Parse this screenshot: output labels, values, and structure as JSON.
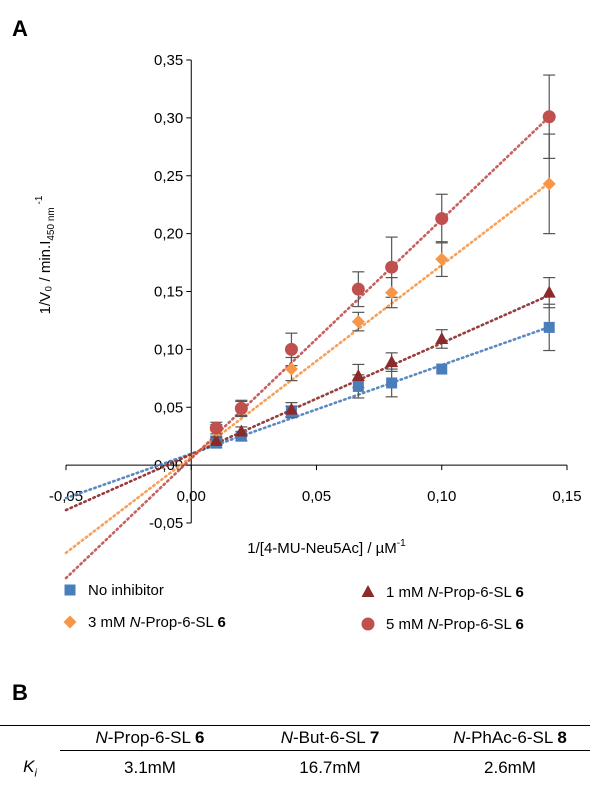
{
  "panels": {
    "a_label": "A",
    "b_label": "B"
  },
  "chart_data": {
    "type": "scatter",
    "xlabel": "1/[4-MU-Neu5Ac] / µM",
    "xlabel_sup": "-1",
    "ylabel": "1/V₀ / min.I",
    "ylabel_sub": "450 nm",
    "ylabel_sup": "-1",
    "xlim": [
      -0.05,
      0.15
    ],
    "ylim": [
      -0.05,
      0.35
    ],
    "x_ticks": [
      -0.05,
      0.0,
      0.05,
      0.1,
      0.15
    ],
    "x_tick_labels": [
      "-0,05",
      "0,00",
      "0,05",
      "0,10",
      "0,15"
    ],
    "y_ticks": [
      -0.05,
      0.0,
      0.05,
      0.1,
      0.15,
      0.2,
      0.25,
      0.3,
      0.35
    ],
    "y_tick_labels": [
      "-0,05",
      "0,00",
      "0,05",
      "0,10",
      "0,15",
      "0,20",
      "0,25",
      "0,30",
      "0,35"
    ],
    "grid": false,
    "legend_position": "bottom",
    "x": [
      0.01,
      0.02,
      0.04,
      0.0667,
      0.08,
      0.1,
      0.1429
    ],
    "series": [
      {
        "name": "No inhibitor",
        "marker": "square",
        "color": "#4a7ebb",
        "line_color": "#4a7ebb",
        "values": [
          0.019,
          0.025,
          0.046,
          0.068,
          0.071,
          0.083,
          0.119
        ],
        "errors": [
          0.004,
          0.004,
          0.005,
          0.01,
          0.012,
          0.0,
          0.02
        ],
        "fit": {
          "slope": 0.766,
          "intercept": 0.0098
        }
      },
      {
        "name": "1 mM N-Prop-6-SL 6",
        "marker": "triangle",
        "color": "#8b2a2a",
        "line_color": "#8b2a2a",
        "values": [
          0.021,
          0.029,
          0.048,
          0.077,
          0.089,
          0.109,
          0.149
        ],
        "errors": [
          0.003,
          0.004,
          0.006,
          0.01,
          0.008,
          0.008,
          0.013
        ],
        "fit": {
          "slope": 0.962,
          "intercept": 0.0093
        }
      },
      {
        "name": "3 mM N-Prop-6-SL 6",
        "marker": "diamond",
        "color": "#f79646",
        "line_color": "#f79646",
        "values": [
          0.03,
          0.049,
          0.083,
          0.124,
          0.149,
          0.178,
          0.243
        ],
        "errors": [
          0.005,
          0.006,
          0.01,
          0.008,
          0.013,
          0.015,
          0.043
        ],
        "fit": {
          "slope": 1.657,
          "intercept": 0.0071
        }
      },
      {
        "name": "5 mM N-Prop-6-SL 6",
        "marker": "circle",
        "color": "#c0504d",
        "line_color": "#c0504d",
        "values": [
          0.032,
          0.049,
          0.1,
          0.152,
          0.171,
          0.213,
          0.301
        ],
        "errors": [
          0.005,
          0.007,
          0.014,
          0.015,
          0.026,
          0.021,
          0.036
        ],
        "fit": {
          "slope": 2.066,
          "intercept": 0.0057
        }
      }
    ],
    "legend": [
      {
        "label_pre": "No inhibitor",
        "label_ital": "",
        "label_post": "",
        "label_bold": ""
      },
      {
        "label_pre": "1 mM ",
        "label_ital": "N",
        "label_post": "-Prop-6-SL ",
        "label_bold": "6"
      },
      {
        "label_pre": "3 mM ",
        "label_ital": "N",
        "label_post": "-Prop-6-SL ",
        "label_bold": "6"
      },
      {
        "label_pre": "5 mM ",
        "label_ital": "N",
        "label_post": "-Prop-6-SL ",
        "label_bold": "6"
      }
    ]
  },
  "table": {
    "row_label_ital": "K",
    "row_label_sub": "i",
    "columns": [
      {
        "ital": "N",
        "text": "-Prop-6-SL ",
        "bold": "6"
      },
      {
        "ital": "N",
        "text": "-But-6-SL ",
        "bold": "7"
      },
      {
        "ital": "N",
        "text": "-PhAc-6-SL ",
        "bold": "8"
      }
    ],
    "values": [
      "3.1mM",
      "16.7mM",
      "2.6mM"
    ]
  }
}
